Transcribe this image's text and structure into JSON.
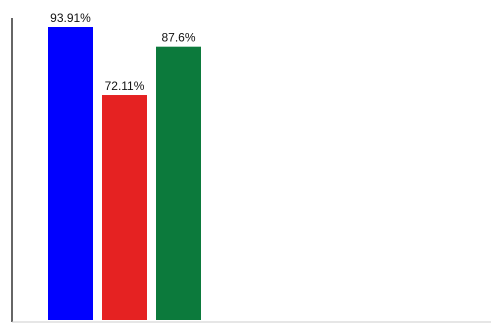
{
  "chart_data": {
    "type": "bar",
    "title": "",
    "xlabel": "",
    "ylabel": "",
    "ylim": [
      0,
      100
    ],
    "grid": false,
    "bars": [
      {
        "value": 93.91,
        "label": "93.91%",
        "color": "#0000ff"
      },
      {
        "value": 72.11,
        "label": "72.11%",
        "color": "#e52222"
      },
      {
        "value": 87.6,
        "label": "87.6%",
        "color": "#0c7a3c"
      }
    ]
  }
}
